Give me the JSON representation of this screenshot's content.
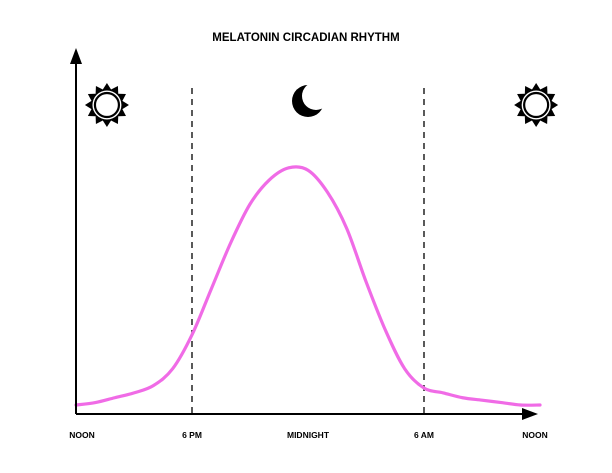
{
  "chart_data": {
    "type": "line",
    "title": "MELATONIN CIRCADIAN RHYTHM",
    "xlabel": "",
    "ylabel": "",
    "x_ticks": [
      "NOON",
      "6 PM",
      "MIDNIGHT",
      "6 AM",
      "NOON"
    ],
    "x_tick_hours": [
      0,
      6,
      12,
      18,
      24
    ],
    "xlim": [
      0,
      24
    ],
    "ylim": [
      0,
      1
    ],
    "grid": false,
    "series": [
      {
        "color": "#f06be6",
        "x": [
          0,
          1,
          2,
          3,
          4,
          5,
          6,
          7,
          8,
          9,
          10,
          11,
          12,
          13,
          14,
          15,
          16,
          17,
          18,
          19,
          20,
          21,
          22,
          23,
          24
        ],
        "y": [
          0.0,
          0.01,
          0.03,
          0.05,
          0.08,
          0.15,
          0.29,
          0.48,
          0.67,
          0.83,
          0.93,
          0.98,
          0.97,
          0.88,
          0.73,
          0.51,
          0.31,
          0.15,
          0.07,
          0.05,
          0.03,
          0.02,
          0.01,
          0.0,
          0.0
        ]
      }
    ],
    "markers": [
      {
        "hour": 6,
        "style": "dashed"
      },
      {
        "hour": 18,
        "style": "dashed"
      }
    ],
    "icons": [
      {
        "name": "sun-icon",
        "hour": 1.6
      },
      {
        "name": "moon-icon",
        "hour": 12.0
      },
      {
        "name": "sun-icon",
        "hour": 23.8
      }
    ]
  }
}
